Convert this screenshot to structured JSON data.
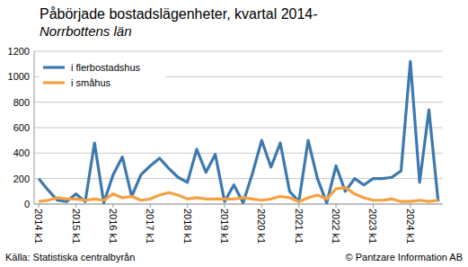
{
  "chart_data": {
    "type": "line",
    "title": "Påbörjade bostadslägenheter, kvartal 2014-",
    "subtitle": "Norrbottens län",
    "annotations": [
      "Källa: Statistiska centralbyrån",
      "© Pantzare Information AB"
    ],
    "categories": [
      "2014 k1",
      null,
      null,
      null,
      "2015 k1",
      null,
      null,
      null,
      "2016 k1",
      null,
      null,
      null,
      "2017 k1",
      null,
      null,
      null,
      "2018 k1",
      null,
      null,
      null,
      "2019 k1",
      null,
      null,
      null,
      "2020 k1",
      null,
      null,
      null,
      "2021 k1",
      null,
      null,
      null,
      "2022 k1",
      null,
      null,
      null,
      "2023 k1",
      null,
      null,
      null,
      "2024 k1",
      null,
      null,
      null
    ],
    "series": [
      {
        "name": "i flerbostadshus",
        "color": "#3d79ae",
        "values": [
          200,
          110,
          30,
          20,
          80,
          20,
          480,
          10,
          230,
          370,
          60,
          230,
          300,
          360,
          280,
          210,
          170,
          430,
          250,
          390,
          20,
          150,
          10,
          240,
          500,
          290,
          480,
          100,
          20,
          500,
          200,
          10,
          300,
          100,
          200,
          150,
          200,
          200,
          210,
          260,
          1120,
          170,
          740,
          20
        ]
      },
      {
        "name": "i småhus",
        "color": "#f5a142",
        "values": [
          20,
          30,
          50,
          40,
          40,
          30,
          40,
          30,
          80,
          50,
          60,
          30,
          40,
          70,
          90,
          70,
          40,
          50,
          40,
          40,
          40,
          40,
          50,
          40,
          30,
          40,
          60,
          50,
          20,
          50,
          70,
          40,
          120,
          130,
          80,
          50,
          30,
          30,
          40,
          20,
          20,
          30,
          20,
          30
        ]
      }
    ],
    "ylim": [
      0,
      1200
    ],
    "yticks": [
      0,
      200,
      400,
      600,
      800,
      1000,
      1200
    ],
    "grid": true,
    "legend": "upper left"
  }
}
